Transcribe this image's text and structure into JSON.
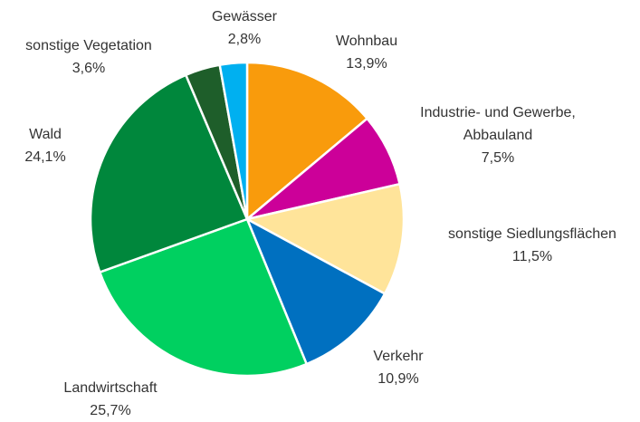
{
  "chart_data": {
    "type": "pie",
    "categories": [
      "Wohnbau",
      "Industrie- und Gewerbe, Abbauland",
      "sonstige Siedlungsflächen",
      "Verkehr",
      "Landwirtschaft",
      "Wald",
      "sonstige Vegetation",
      "Gewässer"
    ],
    "values": [
      13.9,
      7.5,
      11.5,
      10.9,
      25.7,
      24.1,
      3.6,
      2.8
    ],
    "value_labels": [
      "13,9%",
      "7,5%",
      "11,5%",
      "10,9%",
      "25,7%",
      "24,1%",
      "3,6%",
      "2,8%"
    ],
    "colors": [
      "#f99b0c",
      "#cc0099",
      "#ffe49a",
      "#0070c0",
      "#00d060",
      "#00873c",
      "#1e5e2a",
      "#00b0f0"
    ]
  }
}
